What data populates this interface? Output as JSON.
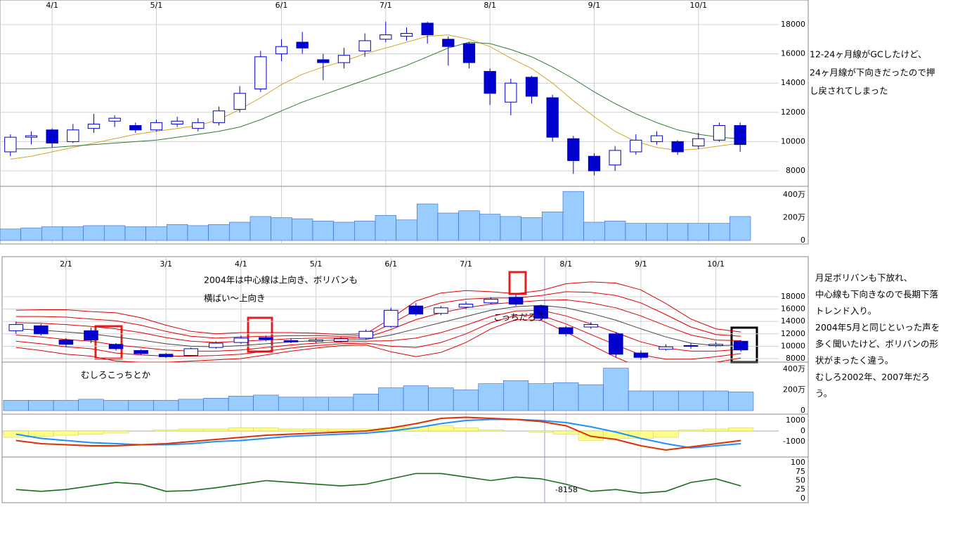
{
  "chart_data": [
    {
      "type": "candlestick",
      "categories": [
        null,
        null,
        "4/1",
        null,
        null,
        null,
        null,
        "5/1",
        null,
        null,
        null,
        null,
        null,
        "6/1",
        null,
        null,
        null,
        null,
        "7/1",
        null,
        null,
        null,
        null,
        "8/1",
        null,
        null,
        null,
        null,
        "9/1",
        null,
        null,
        null,
        null,
        "10/1",
        null,
        null
      ],
      "open": [
        9300,
        10300,
        10800,
        10000,
        10900,
        11400,
        11100,
        10800,
        11200,
        10900,
        11300,
        12200,
        13600,
        16000,
        16800,
        15600,
        15400,
        16200,
        17000,
        17200,
        18100,
        17000,
        16700,
        14800,
        12700,
        14400,
        13000,
        10200,
        9000,
        8400,
        9300,
        10000,
        10000,
        9700,
        10100,
        11100
      ],
      "close": [
        10300,
        10400,
        9900,
        10800,
        11200,
        11600,
        10800,
        11300,
        11400,
        11300,
        12100,
        13300,
        15800,
        16500,
        16400,
        15400,
        15900,
        16900,
        17300,
        17400,
        17300,
        16500,
        15400,
        13300,
        14000,
        13100,
        10300,
        8700,
        8000,
        9400,
        10100,
        10400,
        9300,
        10200,
        11100,
        9800
      ],
      "high": [
        10500,
        10700,
        10900,
        11200,
        11900,
        11800,
        11300,
        11500,
        11700,
        11600,
        12400,
        13800,
        16200,
        17000,
        17500,
        16000,
        16400,
        17400,
        18200,
        17800,
        18200,
        17200,
        16800,
        15000,
        14300,
        14500,
        13200,
        10400,
        9200,
        9700,
        10500,
        10700,
        10100,
        10600,
        11300,
        11300
      ],
      "low": [
        9000,
        9800,
        9600,
        9900,
        10600,
        11000,
        10600,
        10700,
        11000,
        10700,
        11100,
        12000,
        13400,
        15500,
        16000,
        14200,
        15000,
        15800,
        16800,
        16900,
        16700,
        15200,
        15000,
        12500,
        11800,
        12600,
        10000,
        7800,
        7700,
        8000,
        9100,
        9800,
        9100,
        9500,
        10000,
        9300
      ],
      "up_color": "#ffffff",
      "down_color": "#0000cc",
      "edge_color": "#0000cc",
      "ma": [
        {
          "color": "#d4a52a",
          "values": [
            8800,
            9000,
            9300,
            9600,
            9900,
            10200,
            10500,
            10700,
            10900,
            11100,
            11500,
            12200,
            13000,
            13900,
            14600,
            15100,
            15500,
            16000,
            16400,
            16800,
            17200,
            17300,
            17000,
            16500,
            15700,
            15000,
            14000,
            12800,
            11700,
            10700,
            10000,
            9600,
            9400,
            9500,
            9700,
            9900
          ]
        },
        {
          "color": "#2e7d32",
          "values": [
            9500,
            9500,
            9600,
            9700,
            9800,
            9900,
            10000,
            10100,
            10300,
            10500,
            10700,
            11000,
            11500,
            12100,
            12700,
            13200,
            13700,
            14200,
            14700,
            15200,
            15800,
            16400,
            16800,
            16700,
            16300,
            15800,
            15100,
            14300,
            13400,
            12600,
            11900,
            11300,
            10800,
            10500,
            10300,
            10200
          ]
        }
      ],
      "ylim": [
        6942,
        19683
      ],
      "yticks": [
        8000,
        10000,
        12000,
        14000,
        16000,
        18000
      ],
      "grid": true,
      "volume": {
        "color": "#99ccff",
        "edge": "#3366cc",
        "values": [
          1000000,
          1100000,
          1200000,
          1200000,
          1300000,
          1300000,
          1200000,
          1200000,
          1400000,
          1300000,
          1400000,
          1600000,
          2100000,
          2000000,
          1900000,
          1700000,
          1600000,
          1700000,
          2200000,
          1800000,
          3200000,
          2400000,
          2600000,
          2300000,
          2100000,
          2000000,
          2500000,
          4300000,
          1600000,
          1700000,
          1500000,
          1500000,
          1500000,
          1500000,
          1500000,
          2100000
        ],
        "ylim": [
          0,
          4740000
        ],
        "yticks": [
          0,
          {
            "value": 2000000,
            "label": "200万"
          },
          {
            "value": 4000000,
            "label": "400万"
          }
        ]
      },
      "notes": [
        "12-24ヶ月線がGCしたけど、",
        "24ヶ月線が下向きだったので押",
        "し戻されてしまった"
      ]
    },
    {
      "type": "candlestick",
      "categories": [
        null,
        null,
        "2/1",
        null,
        null,
        null,
        "3/1",
        null,
        null,
        "4/1",
        null,
        null,
        "5/1",
        null,
        null,
        "6/1",
        null,
        null,
        "7/1",
        null,
        null,
        null,
        "8/1",
        null,
        null,
        "9/1",
        null,
        null,
        "10/1",
        null
      ],
      "open": [
        12500,
        13300,
        11000,
        12500,
        10300,
        9300,
        8700,
        8500,
        9800,
        10600,
        11400,
        10900,
        10800,
        10800,
        11300,
        13200,
        16500,
        15300,
        16300,
        17000,
        17900,
        16500,
        13000,
        13100,
        12000,
        8900,
        9500,
        10100,
        10100,
        10800
      ],
      "close": [
        13500,
        12000,
        10300,
        11000,
        9600,
        8800,
        8300,
        9600,
        10500,
        11300,
        11100,
        10700,
        11000,
        11200,
        12400,
        15800,
        15200,
        16200,
        16800,
        17600,
        16800,
        14500,
        12000,
        13500,
        8700,
        8200,
        9900,
        10000,
        10300,
        9400
      ],
      "high": [
        14000,
        13600,
        11300,
        13000,
        10500,
        9500,
        8900,
        9800,
        10800,
        11700,
        11700,
        11200,
        11300,
        11500,
        12700,
        16200,
        17000,
        16500,
        17200,
        17900,
        18300,
        16700,
        13300,
        13900,
        12300,
        9300,
        10300,
        10500,
        10700,
        11000
      ],
      "low": [
        12000,
        11700,
        9900,
        10500,
        9300,
        8600,
        8100,
        8400,
        9600,
        10400,
        10800,
        10500,
        10500,
        10600,
        11100,
        13000,
        14900,
        15000,
        16000,
        16800,
        16500,
        14200,
        11600,
        12800,
        8200,
        7800,
        9300,
        9600,
        9900,
        9100
      ],
      "up_color": "#ffffff",
      "down_color": "#0000cc",
      "edge_color": "#0000cc",
      "bands": [
        [
          12800,
          12600,
          12300,
          12000,
          11500,
          11000,
          10400,
          10000,
          9900,
          10100,
          10400,
          10700,
          10900,
          11000,
          11100,
          11800,
          12800,
          13800,
          14800,
          15800,
          16400,
          16600,
          16200,
          15300,
          14200,
          12800,
          11500,
          10500,
          10100,
          10200
        ],
        [
          13800,
          13700,
          13500,
          13200,
          12800,
          12200,
          11400,
          10800,
          10600,
          10800,
          11000,
          11200,
          11300,
          11300,
          11400,
          12700,
          14300,
          15400,
          16200,
          16800,
          17100,
          17400,
          17500,
          17000,
          16200,
          14900,
          13300,
          11800,
          11000,
          10900
        ],
        [
          14800,
          14800,
          14700,
          14400,
          14100,
          13400,
          12400,
          11600,
          11300,
          11500,
          11600,
          11700,
          11700,
          11600,
          11700,
          13600,
          15800,
          17000,
          17600,
          17800,
          17800,
          18200,
          18800,
          18700,
          18200,
          17000,
          15100,
          13100,
          11900,
          11600
        ],
        [
          15800,
          15900,
          15900,
          15600,
          15400,
          14600,
          13400,
          12400,
          12000,
          12200,
          12200,
          12200,
          12100,
          11900,
          12000,
          14500,
          17300,
          18600,
          19000,
          18800,
          18500,
          19000,
          20100,
          20400,
          20200,
          19100,
          16900,
          14400,
          12800,
          12300
        ],
        [
          11800,
          11500,
          11100,
          10800,
          10200,
          9800,
          9400,
          9200,
          9200,
          9400,
          9800,
          10200,
          10500,
          10700,
          10800,
          10900,
          11300,
          12200,
          13400,
          14800,
          15700,
          15800,
          14900,
          13600,
          12200,
          10700,
          9700,
          9200,
          9200,
          9500
        ],
        [
          10800,
          10400,
          9900,
          9600,
          8900,
          8600,
          8400,
          8400,
          8500,
          8700,
          9200,
          9700,
          10100,
          10400,
          10500,
          10000,
          9800,
          10600,
          12000,
          13800,
          15000,
          15000,
          13600,
          11900,
          10200,
          8600,
          7900,
          7900,
          8300,
          8800
        ],
        [
          9800,
          9300,
          8700,
          8400,
          7600,
          7400,
          7400,
          7600,
          7800,
          8000,
          8600,
          9200,
          9700,
          10100,
          10200,
          9100,
          8300,
          9000,
          10600,
          12800,
          14300,
          14200,
          12300,
          10200,
          8200,
          6500,
          6100,
          6600,
          7400,
          8100
        ]
      ],
      "mid_color": "#444444",
      "band_color": "#e00000",
      "ylim": [
        7430,
        22770
      ],
      "yticks": [
        8000,
        10000,
        12000,
        14000,
        16000,
        18000
      ],
      "grid": true,
      "volume": {
        "color": "#99ccff",
        "edge": "#3366cc",
        "values": [
          1000000,
          1000000,
          1000000,
          1100000,
          1000000,
          1000000,
          1000000,
          1100000,
          1200000,
          1400000,
          1500000,
          1300000,
          1300000,
          1300000,
          1600000,
          2200000,
          2400000,
          2200000,
          2000000,
          2600000,
          2900000,
          2600000,
          2700000,
          2500000,
          4100000,
          1900000,
          1900000,
          1900000,
          1900000,
          1800000
        ],
        "ylim": [
          0,
          4680000
        ],
        "yticks": [
          0,
          {
            "value": 2000000,
            "label": "200万"
          },
          {
            "value": 4000000,
            "label": "400万"
          }
        ]
      },
      "macd": {
        "line_color": "#e03000",
        "signal_color": "#1e90ff",
        "hist_color": "#ffff88",
        "line": [
          -900,
          -1200,
          -1300,
          -1400,
          -1400,
          -1300,
          -1200,
          -1000,
          -800,
          -600,
          -400,
          -300,
          -200,
          -100,
          0,
          300,
          700,
          1200,
          1300,
          1200,
          1100,
          900,
          500,
          -500,
          -800,
          -1400,
          -1800,
          -1500,
          -1200,
          -900
        ],
        "signal": [
          -300,
          -700,
          -900,
          -1100,
          -1200,
          -1300,
          -1300,
          -1200,
          -1000,
          -900,
          -700,
          -500,
          -400,
          -300,
          -200,
          0,
          300,
          700,
          1000,
          1100,
          1100,
          1000,
          800,
          400,
          -100,
          -700,
          -1200,
          -1600,
          -1400,
          -1200
        ],
        "histogram": [
          -600,
          -500,
          -400,
          -300,
          -200,
          0,
          100,
          200,
          200,
          300,
          300,
          200,
          200,
          200,
          200,
          300,
          400,
          500,
          300,
          100,
          0,
          -100,
          -300,
          -900,
          -700,
          -700,
          -600,
          100,
          200,
          300
        ],
        "ylim": [
          -2333,
          1533
        ],
        "yticks": [
          -1000,
          0,
          1000
        ]
      },
      "rsi": {
        "color": "#1a6e1a",
        "values": [
          25,
          20,
          25,
          35,
          45,
          40,
          20,
          22,
          30,
          40,
          50,
          45,
          40,
          35,
          40,
          55,
          70,
          70,
          60,
          50,
          60,
          55,
          40,
          20,
          25,
          15,
          20,
          45,
          55,
          35
        ],
        "ylim": [
          -12,
          116
        ],
        "yticks": [
          0,
          25,
          50,
          75,
          100
        ]
      },
      "cursor_label": "-8158",
      "annotations": [
        "2004年は中心線は上向き、ボリバンも",
        "横ばい～上向き",
        "こっちだろう",
        "むしろこっちとか"
      ],
      "notes": [
        "月足ボリバンも下放れ、",
        "中心線も下向きなので長期下落",
        "トレンド入り。",
        "2004年5月と同じといった声を",
        "多く聞いたけど、ボリバンの形",
        "状がまったく違う。",
        "むしろ2002年、2007年だろ",
        "う。"
      ]
    }
  ]
}
